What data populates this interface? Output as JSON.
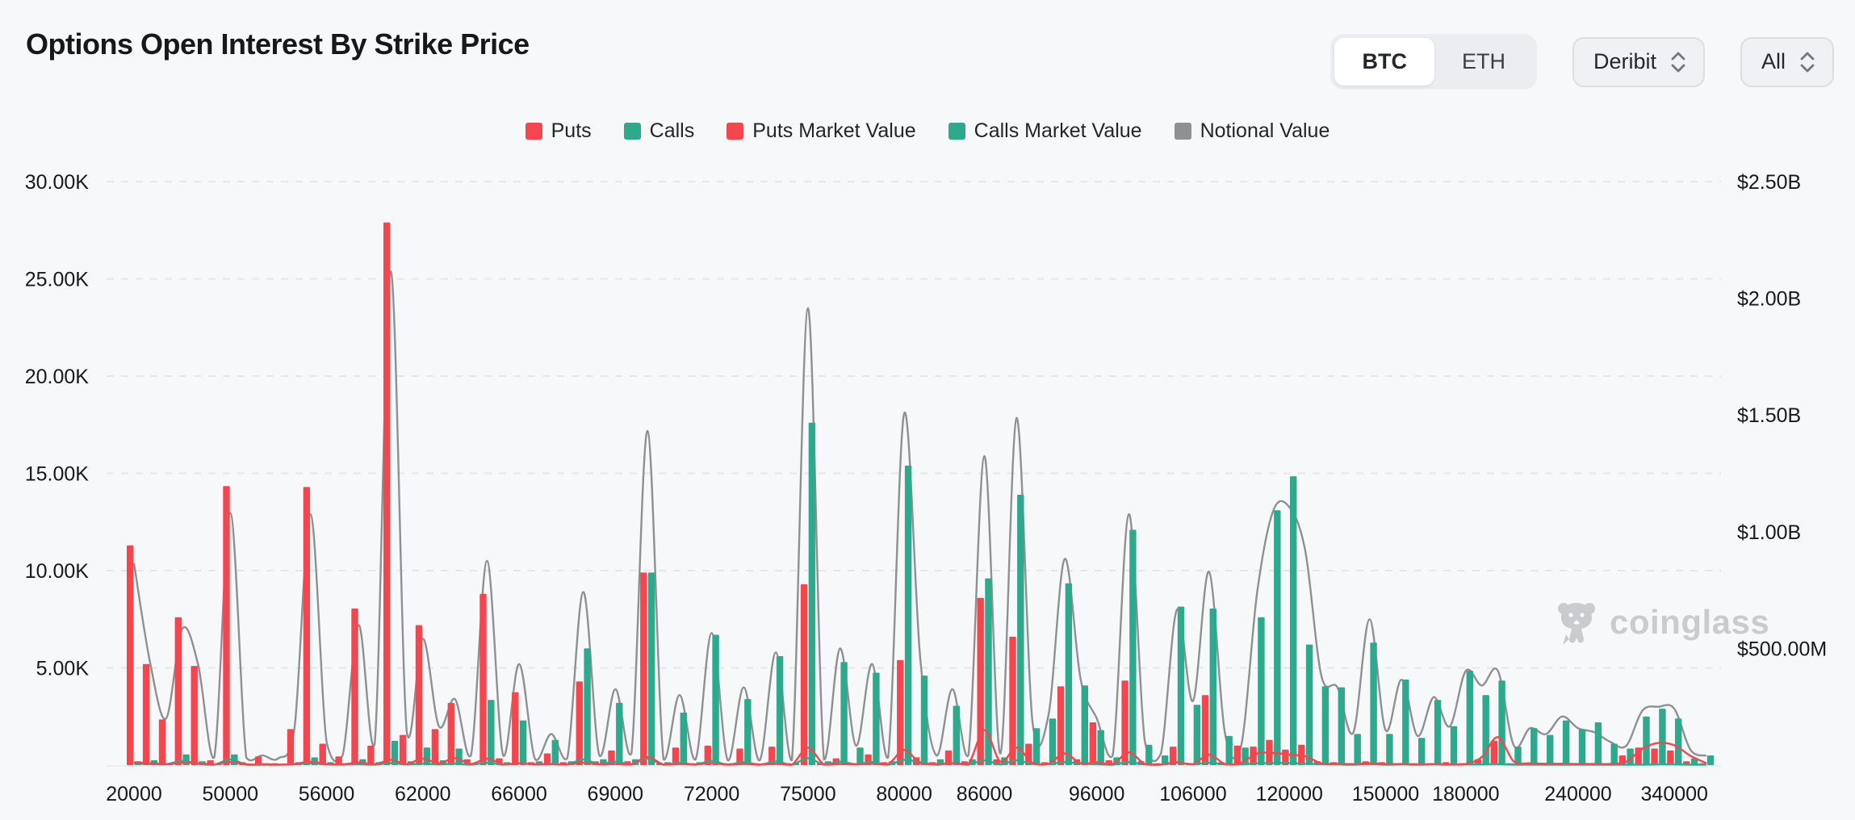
{
  "header": {
    "title": "Options Open Interest By Strike Price",
    "asset_tabs": [
      {
        "label": "BTC",
        "active": true
      },
      {
        "label": "ETH",
        "active": false
      }
    ],
    "exchange_dropdown": {
      "value": "Deribit"
    },
    "expiry_dropdown": {
      "value": "All"
    }
  },
  "watermark": {
    "text": "coinglass"
  },
  "colors": {
    "background": "#f7f8fa",
    "puts_red": "#f4464f",
    "calls_teal": "#2fa98c",
    "notional_gray": "#8f9093",
    "gridline": "#e5e6e9",
    "axis_text": "#17191d",
    "watermark_gray": "#c9cbcf"
  },
  "chart_data": {
    "type": "bar",
    "title": "Options Open Interest By Strike Price",
    "n_points": 99,
    "grid": "dashed-horizontal",
    "legend_position": "top-center",
    "x_axis": {
      "visible_labels": [
        {
          "i": 0,
          "label": "20000"
        },
        {
          "i": 6,
          "label": "50000"
        },
        {
          "i": 12,
          "label": "56000"
        },
        {
          "i": 18,
          "label": "62000"
        },
        {
          "i": 24,
          "label": "66000"
        },
        {
          "i": 30,
          "label": "69000"
        },
        {
          "i": 36,
          "label": "72000"
        },
        {
          "i": 42,
          "label": "75000"
        },
        {
          "i": 48,
          "label": "80000"
        },
        {
          "i": 53,
          "label": "86000"
        },
        {
          "i": 60,
          "label": "96000"
        },
        {
          "i": 66,
          "label": "106000"
        },
        {
          "i": 72,
          "label": "120000"
        },
        {
          "i": 78,
          "label": "150000"
        },
        {
          "i": 83,
          "label": "180000"
        },
        {
          "i": 90,
          "label": "240000"
        },
        {
          "i": 96,
          "label": "340000"
        }
      ]
    },
    "y_left_axis": {
      "range_contracts_k": [
        0,
        30
      ],
      "ticks": [
        {
          "label": "30.00K",
          "value": 30
        },
        {
          "label": "25.00K",
          "value": 25
        },
        {
          "label": "20.00K",
          "value": 20
        },
        {
          "label": "15.00K",
          "value": 15
        },
        {
          "label": "10.00K",
          "value": 10
        },
        {
          "label": "5.00K",
          "value": 5
        }
      ]
    },
    "y_right_axis": {
      "range_usd_m": [
        0,
        2500
      ],
      "ticks": [
        {
          "label": "$2.50B",
          "value": 2500
        },
        {
          "label": "$2.00B",
          "value": 2000
        },
        {
          "label": "$1.50B",
          "value": 1500
        },
        {
          "label": "$1.00B",
          "value": 1000
        },
        {
          "label": "$500.00M",
          "value": 500
        }
      ]
    },
    "legend": [
      {
        "label": "Puts",
        "color": "#f4464f"
      },
      {
        "label": "Calls",
        "color": "#2fa98c"
      },
      {
        "label": "Puts Market Value",
        "color": "#f4464f"
      },
      {
        "label": "Calls Market Value",
        "color": "#2fa98c"
      },
      {
        "label": "Notional Value",
        "color": "#8f9093"
      }
    ],
    "series": [
      {
        "name": "Puts",
        "type": "bar",
        "axis": "left",
        "unit": "K contracts",
        "color": "#f4464f",
        "values": [
          11.3,
          5.2,
          2.35,
          7.6,
          5.1,
          0.25,
          14.35,
          0.15,
          0.45,
          0.1,
          1.85,
          14.3,
          1.1,
          0.45,
          8.05,
          1.0,
          27.9,
          1.55,
          7.2,
          1.85,
          3.2,
          0.3,
          8.8,
          0.35,
          3.75,
          0.15,
          0.6,
          0.15,
          4.3,
          0.2,
          0.75,
          0.2,
          9.9,
          0.1,
          0.9,
          0.1,
          1.0,
          0.1,
          0.85,
          0.1,
          0.95,
          0.1,
          9.3,
          0.1,
          0.35,
          0.1,
          0.55,
          0.15,
          5.4,
          0.4,
          0.15,
          0.75,
          0.2,
          8.6,
          0.3,
          6.6,
          1.1,
          0.15,
          4.05,
          0.3,
          2.2,
          0.25,
          4.35,
          0.2,
          0.1,
          0.95,
          0.1,
          3.6,
          0.15,
          1.0,
          0.95,
          1.3,
          0.8,
          1.05,
          0.2,
          0.15,
          0.1,
          0.2,
          0.15,
          0.1,
          0.1,
          0.1,
          0.15,
          0.1,
          0.3,
          1.25,
          0.1,
          0.1,
          0.1,
          0.1,
          0.1,
          0.1,
          0.1,
          0.5,
          0.9,
          0.85,
          0.75,
          0.2,
          0.1
        ]
      },
      {
        "name": "Calls",
        "type": "bar",
        "axis": "left",
        "unit": "K contracts",
        "color": "#2fa98c",
        "values": [
          0.2,
          0.25,
          0.1,
          0.55,
          0.2,
          0.05,
          0.55,
          0.05,
          0.1,
          0.05,
          0.15,
          0.4,
          0.15,
          0.1,
          0.3,
          0.15,
          1.25,
          0.2,
          0.9,
          0.25,
          0.85,
          0.1,
          3.35,
          0.15,
          2.3,
          0.2,
          1.3,
          0.2,
          6.0,
          0.3,
          3.2,
          0.3,
          9.9,
          0.15,
          2.7,
          0.15,
          6.7,
          0.1,
          3.4,
          0.1,
          5.6,
          0.1,
          17.6,
          0.2,
          5.3,
          0.9,
          4.75,
          0.2,
          15.4,
          4.6,
          0.3,
          3.05,
          0.3,
          9.6,
          0.4,
          13.9,
          1.9,
          2.4,
          9.35,
          4.1,
          1.8,
          0.4,
          12.1,
          1.05,
          0.5,
          8.15,
          3.1,
          8.05,
          1.5,
          0.9,
          7.6,
          13.1,
          14.85,
          6.2,
          4.05,
          4.0,
          1.6,
          6.3,
          1.6,
          4.4,
          1.4,
          3.35,
          2.0,
          4.85,
          3.6,
          4.35,
          0.95,
          1.9,
          1.55,
          2.3,
          1.85,
          2.2,
          1.1,
          0.85,
          2.5,
          2.9,
          2.4,
          0.35,
          0.5
        ]
      },
      {
        "name": "Puts Market Value",
        "type": "line",
        "axis": "right",
        "unit": "USD M",
        "color": "#f4464f",
        "values": [
          12,
          8,
          5,
          10,
          8,
          3,
          14,
          3,
          3,
          2,
          5,
          15,
          5,
          3,
          11,
          4,
          22,
          5,
          28,
          8,
          30,
          5,
          28,
          4,
          8,
          3,
          4,
          3,
          10,
          3,
          5,
          3,
          35,
          3,
          5,
          3,
          8,
          2,
          5,
          2,
          6,
          2,
          75,
          3,
          5,
          3,
          6,
          4,
          65,
          8,
          4,
          8,
          5,
          150,
          15,
          75,
          10,
          6,
          50,
          8,
          12,
          5,
          55,
          5,
          3,
          12,
          4,
          45,
          5,
          10,
          50,
          52,
          45,
          38,
          8,
          6,
          4,
          8,
          4,
          5,
          3,
          4,
          3,
          5,
          35,
          120,
          15,
          8,
          6,
          6,
          5,
          5,
          5,
          15,
          70,
          95,
          85,
          40,
          8
        ]
      },
      {
        "name": "Calls Market Value",
        "type": "line",
        "axis": "right",
        "unit": "USD M",
        "color": "#2fa98c",
        "values": [
          6,
          5,
          4,
          18,
          6,
          2,
          25,
          2,
          2,
          2,
          3,
          8,
          3,
          2,
          4,
          2,
          9,
          3,
          6,
          3,
          6,
          2,
          10,
          2,
          8,
          3,
          5,
          3,
          24,
          4,
          15,
          4,
          28,
          2,
          11,
          2,
          18,
          2,
          13,
          2,
          16,
          2,
          30,
          2,
          15,
          4,
          13,
          2,
          22,
          12,
          2,
          9,
          2,
          20,
          3,
          20,
          5,
          5,
          12,
          7,
          4,
          2,
          12,
          3,
          2,
          10,
          4,
          10,
          3,
          3,
          8,
          9,
          9,
          6,
          4,
          3,
          2,
          5,
          2,
          3,
          2,
          3,
          2,
          3,
          3,
          4,
          2,
          2,
          2,
          2,
          2,
          2,
          2,
          2,
          2,
          3,
          3,
          2,
          2
        ]
      },
      {
        "name": "Notional Value",
        "type": "line",
        "axis": "right",
        "unit": "USD M",
        "color": "#8f9093",
        "values": [
          865,
          440,
          200,
          583,
          429,
          33,
          1080,
          33,
          42,
          29,
          158,
          1075,
          100,
          42,
          600,
          92,
          2115,
          142,
          542,
          167,
          283,
          42,
          875,
          42,
          433,
          25,
          133,
          29,
          742,
          42,
          325,
          50,
          1432,
          25,
          300,
          25,
          566,
          21,
          333,
          21,
          483,
          21,
          1957,
          25,
          500,
          83,
          433,
          33,
          1507,
          458,
          42,
          325,
          42,
          1324,
          50,
          1487,
          183,
          217,
          883,
          366,
          200,
          42,
          1075,
          100,
          50,
          666,
          275,
          829,
          133,
          83,
          741,
          1090,
          1105,
          916,
          383,
          333,
          141,
          625,
          150,
          366,
          125,
          291,
          166,
          404,
          341,
          404,
          83,
          158,
          133,
          208,
          158,
          141,
          100,
          83,
          233,
          250,
          241,
          66,
          40
        ]
      }
    ]
  }
}
